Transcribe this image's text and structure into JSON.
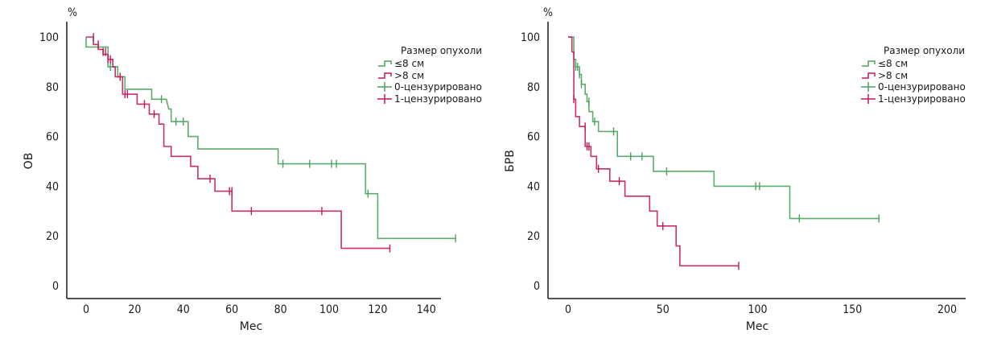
{
  "chart_data": [
    {
      "type": "line",
      "subtype": "kaplan-meier step",
      "title": "",
      "ylabel": "ОВ",
      "yunit": "%",
      "xlabel": "Мес",
      "xlim": [
        -8,
        146
      ],
      "ylim": [
        -4,
        104
      ],
      "xticks": [
        0,
        20,
        40,
        60,
        80,
        100,
        120,
        140
      ],
      "yticks": [
        0,
        20,
        40,
        60,
        80,
        100
      ],
      "grid": false,
      "legend": {
        "title": "Размер опухоли",
        "placement": "top-right",
        "entries": [
          "≤8 см",
          ">8 см",
          "0-цензурировано",
          "1-цензурировано"
        ]
      },
      "series": [
        {
          "name": "≤8 см",
          "color": "#4aa35e",
          "steps": [
            [
              0,
              100
            ],
            [
              0,
              96
            ],
            [
              9,
              96
            ],
            [
              9,
              88
            ],
            [
              13,
              88
            ],
            [
              13,
              84
            ],
            [
              16,
              84
            ],
            [
              16,
              79
            ],
            [
              27,
              79
            ],
            [
              27,
              75
            ],
            [
              33,
              75
            ],
            [
              34,
              71
            ],
            [
              35,
              71
            ],
            [
              35,
              66
            ],
            [
              42,
              66
            ],
            [
              42,
              60
            ],
            [
              46,
              60
            ],
            [
              46,
              55
            ],
            [
              79,
              55
            ],
            [
              79,
              49
            ],
            [
              115,
              49
            ],
            [
              115,
              37
            ],
            [
              120,
              37
            ],
            [
              120,
              19
            ],
            [
              152,
              19
            ]
          ],
          "censored": [
            [
              10,
              88
            ],
            [
              14,
              84
            ],
            [
              31,
              75
            ],
            [
              37,
              66
            ],
            [
              40,
              66
            ],
            [
              81,
              49
            ],
            [
              92,
              49
            ],
            [
              101,
              49
            ],
            [
              103,
              49
            ],
            [
              116,
              37
            ],
            [
              152,
              19
            ]
          ]
        },
        {
          "name": ">8 см",
          "color": "#c2185b",
          "steps": [
            [
              0,
              100
            ],
            [
              3,
              100
            ],
            [
              3,
              97
            ],
            [
              5,
              97
            ],
            [
              5,
              95
            ],
            [
              7,
              95
            ],
            [
              7,
              93
            ],
            [
              9,
              93
            ],
            [
              9,
              91
            ],
            [
              11,
              91
            ],
            [
              11,
              88
            ],
            [
              12,
              88
            ],
            [
              12,
              84
            ],
            [
              15,
              84
            ],
            [
              15,
              77
            ],
            [
              21,
              77
            ],
            [
              21,
              73
            ],
            [
              26,
              73
            ],
            [
              26,
              69
            ],
            [
              30,
              69
            ],
            [
              30,
              65
            ],
            [
              32,
              65
            ],
            [
              32,
              56
            ],
            [
              35,
              56
            ],
            [
              35,
              52
            ],
            [
              43,
              52
            ],
            [
              43,
              48
            ],
            [
              46,
              48
            ],
            [
              46,
              43
            ],
            [
              53,
              43
            ],
            [
              53,
              38
            ],
            [
              60,
              38
            ],
            [
              60,
              30
            ],
            [
              105,
              30
            ],
            [
              105,
              15
            ],
            [
              125,
              15
            ]
          ],
          "censored": [
            [
              3,
              100
            ],
            [
              5,
              97
            ],
            [
              7,
              94
            ],
            [
              8,
              94
            ],
            [
              9,
              91
            ],
            [
              10,
              91
            ],
            [
              14,
              84
            ],
            [
              16,
              77
            ],
            [
              17,
              77
            ],
            [
              24,
              73
            ],
            [
              28,
              69
            ],
            [
              51,
              43
            ],
            [
              59,
              38
            ],
            [
              60,
              38
            ],
            [
              68,
              30
            ],
            [
              97,
              30
            ],
            [
              125,
              15
            ]
          ]
        }
      ]
    },
    {
      "type": "line",
      "subtype": "kaplan-meier step",
      "title": "",
      "ylabel": "БРВ",
      "yunit": "%",
      "xlabel": "Мес",
      "xlim": [
        -10,
        209
      ],
      "ylim": [
        -4,
        104
      ],
      "xticks": [
        0,
        50,
        100,
        150,
        200
      ],
      "yticks": [
        0,
        20,
        40,
        60,
        80,
        100
      ],
      "grid": false,
      "legend": {
        "title": "Размер опухоли",
        "placement": "top-right",
        "entries": [
          "≤8 см",
          ">8 см",
          "0-цензурировано",
          "1-цензурировано"
        ]
      },
      "series": [
        {
          "name": "≤8 см",
          "color": "#4aa35e",
          "steps": [
            [
              0,
              100
            ],
            [
              3,
              100
            ],
            [
              3,
              91
            ],
            [
              4,
              91
            ],
            [
              4,
              88
            ],
            [
              6,
              88
            ],
            [
              6,
              85
            ],
            [
              7,
              85
            ],
            [
              7,
              81
            ],
            [
              9,
              81
            ],
            [
              9,
              77
            ],
            [
              10,
              77
            ],
            [
              10,
              74
            ],
            [
              11,
              74
            ],
            [
              11,
              70
            ],
            [
              13,
              70
            ],
            [
              13,
              66
            ],
            [
              16,
              66
            ],
            [
              16,
              62
            ],
            [
              26,
              62
            ],
            [
              26,
              52
            ],
            [
              45,
              52
            ],
            [
              45,
              46
            ],
            [
              77,
              46
            ],
            [
              77,
              40
            ],
            [
              117,
              40
            ],
            [
              117,
              27
            ],
            [
              164,
              27
            ]
          ],
          "censored": [
            [
              4,
              88
            ],
            [
              5,
              88
            ],
            [
              6,
              85
            ],
            [
              7,
              81
            ],
            [
              11,
              74
            ],
            [
              14,
              66
            ],
            [
              24,
              62
            ],
            [
              33,
              52
            ],
            [
              39,
              52
            ],
            [
              52,
              46
            ],
            [
              99,
              40
            ],
            [
              101,
              40
            ],
            [
              122,
              27
            ],
            [
              164,
              27
            ]
          ]
        },
        {
          "name": ">8 см",
          "color": "#c2185b",
          "steps": [
            [
              0,
              100
            ],
            [
              2,
              100
            ],
            [
              2,
              94
            ],
            [
              3,
              94
            ],
            [
              3,
              75
            ],
            [
              4,
              75
            ],
            [
              4,
              68
            ],
            [
              6,
              68
            ],
            [
              6,
              64
            ],
            [
              9,
              64
            ],
            [
              9,
              56
            ],
            [
              12,
              56
            ],
            [
              12,
              52
            ],
            [
              15,
              52
            ],
            [
              15,
              47
            ],
            [
              22,
              47
            ],
            [
              22,
              42
            ],
            [
              30,
              42
            ],
            [
              30,
              36
            ],
            [
              43,
              36
            ],
            [
              43,
              30
            ],
            [
              47,
              30
            ],
            [
              47,
              24
            ],
            [
              57,
              24
            ],
            [
              57,
              16
            ],
            [
              59,
              16
            ],
            [
              59,
              8
            ],
            [
              90,
              8
            ]
          ],
          "censored": [
            [
              3,
              75
            ],
            [
              9,
              64
            ],
            [
              10,
              56
            ],
            [
              11,
              56
            ],
            [
              16,
              47
            ],
            [
              27,
              42
            ],
            [
              50,
              24
            ],
            [
              90,
              8
            ]
          ]
        }
      ]
    }
  ]
}
